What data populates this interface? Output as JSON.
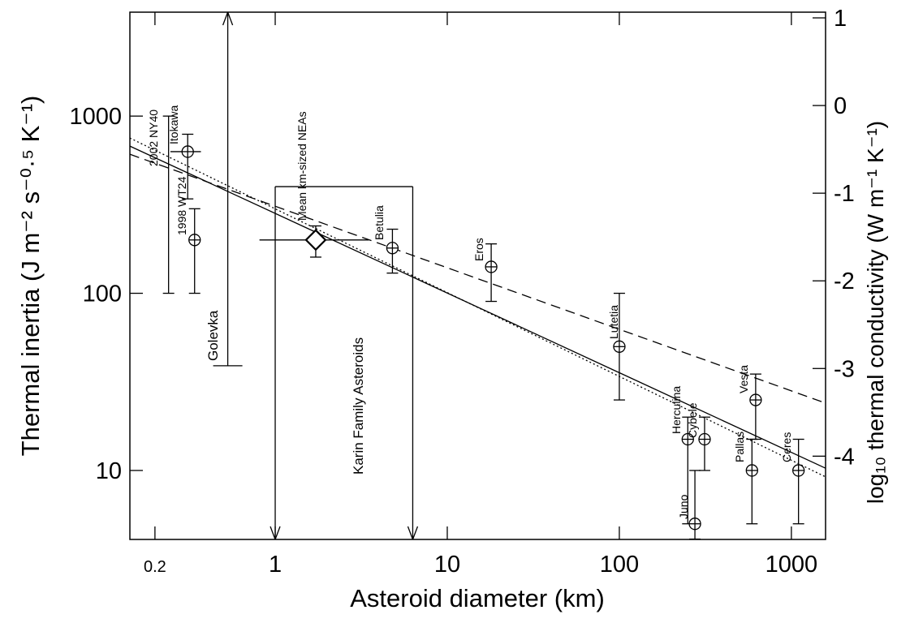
{
  "chart_data": {
    "type": "scatter",
    "xlabel": "Asteroid diameter (km)",
    "ylabel": "Thermal inertia (J m⁻² s⁻⁰·⁵ K⁻¹)",
    "y2label": "log₁₀ thermal conductivity (W m⁻¹ K⁻¹)",
    "xscale": "log",
    "yscale": "log",
    "xlim": [
      0.143,
      1580
    ],
    "ylim": [
      4.08,
      3860
    ],
    "y2lim": [
      -4.95,
      1.065
    ],
    "xticks": [
      0.2,
      1,
      10,
      100,
      1000
    ],
    "yticks": [
      10,
      100,
      1000
    ],
    "y2ticks": [
      1,
      0,
      -1,
      -2,
      -3,
      -4
    ],
    "color": "#000000",
    "points": [
      {
        "label": "2002 NY40",
        "x": 0.24,
        "y_low": 100,
        "y_high": 1000
      },
      {
        "label": "Itokawa",
        "x": 0.31,
        "y": 630,
        "y_low": 341,
        "y_high": 790,
        "x_low": 0.246,
        "x_high": 0.37,
        "marker": "circle-cross"
      },
      {
        "label": "1998 WT24",
        "x": 0.34,
        "y": 200,
        "y_low": 100,
        "y_high": 300,
        "marker": "circle-cross"
      },
      {
        "label": "Golevka",
        "x": 0.53,
        "y_low": 39,
        "y_high": 3860
      },
      {
        "label": "Mean km-sized NEAs",
        "x": 1.72,
        "y": 200,
        "y_low": 160,
        "y_high": 240,
        "x_low": 0.81,
        "x_high": 3.5,
        "marker": "diamond"
      },
      {
        "label": "Betulia",
        "x": 4.8,
        "y": 180,
        "y_low": 130,
        "y_high": 230,
        "marker": "circle-cross"
      },
      {
        "label": "Eros",
        "x": 18,
        "y": 141,
        "y_low": 90,
        "y_high": 190,
        "marker": "circle-cross"
      },
      {
        "label": "Lutetia",
        "x": 100,
        "y": 50,
        "y_low": 25,
        "y_high": 100,
        "marker": "circle-cross"
      },
      {
        "label": "Herculina",
        "x": 250,
        "y": 15,
        "y_low": 5,
        "y_high": 20,
        "marker": "circle-cross"
      },
      {
        "label": "Juno",
        "x": 275,
        "y": 5,
        "y_low": 4.1,
        "y_high": 10,
        "marker": "circle-cross"
      },
      {
        "label": "Cybele",
        "x": 313,
        "y": 15,
        "y_low": 10,
        "y_high": 20,
        "marker": "circle-cross"
      },
      {
        "label": "Pallas",
        "x": 590,
        "y": 10,
        "y_low": 5,
        "y_high": 15,
        "marker": "circle-cross"
      },
      {
        "label": "Vesta",
        "x": 620,
        "y": 25,
        "y_low": 15,
        "y_high": 35,
        "marker": "circle-cross"
      },
      {
        "label": "Ceres",
        "x": 1100,
        "y": 10,
        "y_low": 5,
        "y_high": 15,
        "marker": "circle-cross"
      }
    ],
    "fits": [
      {
        "style": "solid",
        "x": [
          0.143,
          1580
        ],
        "y": [
          677,
          10.3
        ]
      },
      {
        "style": "dotted",
        "x": [
          0.143,
          1580
        ],
        "y": [
          752,
          9.2
        ]
      },
      {
        "style": "dashed",
        "x": [
          0.143,
          1580
        ],
        "y": [
          609,
          24
        ]
      }
    ],
    "karin": {
      "label": "Karin Family Asteroids",
      "x": [
        1,
        6.3
      ],
      "y": 400
    }
  }
}
